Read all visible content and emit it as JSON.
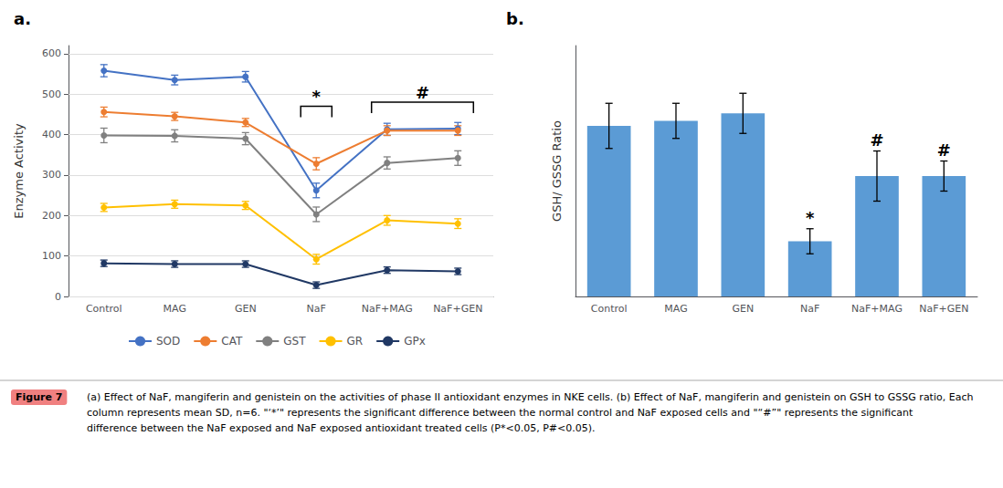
{
  "chart_data": [
    {
      "type": "line",
      "title": "a.",
      "categories": [
        "Control",
        "MAG",
        "GEN",
        "NaF",
        "NaF+MAG",
        "NaF+GEN"
      ],
      "series": [
        {
          "name": "SOD",
          "color": "#4472C4",
          "marker": "circle",
          "values": [
            558,
            535,
            543,
            262,
            413,
            415
          ],
          "errors": [
            15,
            12,
            13,
            18,
            15,
            15
          ]
        },
        {
          "name": "CAT",
          "color": "#ED7D31",
          "marker": "circle",
          "values": [
            456,
            445,
            430,
            328,
            410,
            410
          ],
          "errors": [
            12,
            10,
            10,
            15,
            12,
            12
          ]
        },
        {
          "name": "GST",
          "color": "#808080",
          "marker": "circle",
          "values": [
            398,
            397,
            390,
            203,
            330,
            342
          ],
          "errors": [
            18,
            15,
            15,
            18,
            15,
            18
          ]
        },
        {
          "name": "GR",
          "color": "#FFC000",
          "marker": "circle",
          "values": [
            220,
            228,
            225,
            92,
            188,
            180
          ],
          "errors": [
            10,
            10,
            10,
            12,
            12,
            12
          ]
        },
        {
          "name": "GPx",
          "color": "#203864",
          "marker": "circle",
          "values": [
            82,
            80,
            80,
            28,
            65,
            62
          ],
          "errors": [
            8,
            8,
            8,
            8,
            8,
            8
          ]
        }
      ],
      "ylabel": "Enzyme Activity",
      "ylim": [
        0,
        620
      ],
      "yticks": [
        0,
        100,
        200,
        300,
        400,
        500,
        600
      ],
      "grid": true,
      "legend": "bottom",
      "annotations": [
        {
          "text": "*",
          "x": [
            "NaF"
          ],
          "y": 470
        },
        {
          "text": "#",
          "x": [
            "NaF+MAG",
            "NaF+GEN"
          ],
          "y": 480
        }
      ]
    },
    {
      "type": "bar",
      "title": "b.",
      "categories": [
        "Control",
        "MAG",
        "GEN",
        "NaF",
        "NaF+MAG",
        "NaF+GEN"
      ],
      "values": [
        0.68,
        0.7,
        0.73,
        0.22,
        0.48,
        0.48
      ],
      "errors": [
        0.09,
        0.07,
        0.08,
        0.05,
        0.1,
        0.06
      ],
      "color": "#5B9BD5",
      "ylabel": "GSH/ GSSG Ratio",
      "ylim": [
        0,
        1.0
      ],
      "yticks": [],
      "grid": false,
      "tick_labels": "x",
      "annotations": [
        {
          "text": "*",
          "x": [
            "NaF"
          ]
        },
        {
          "text": "#",
          "x": [
            "NaF+MAG"
          ]
        },
        {
          "text": "#",
          "x": [
            "NaF+GEN"
          ]
        }
      ]
    }
  ],
  "caption_label": "Figure 7",
  "caption": "(a) Effect of NaF, mangiferin and genistein on the activities of phase II antioxidant enzymes in NKE cells. (b) Effect of NaF, mangiferin and genistein on GSH to GSSG ratio, Each column represents mean SD, n=6. \"‘*’\" represents the significant difference between the normal control and NaF exposed cells and \"“#”\" represents the significant difference between the NaF exposed and NaF exposed antioxidant treated cells (P*<0.05, P#<0.05)."
}
